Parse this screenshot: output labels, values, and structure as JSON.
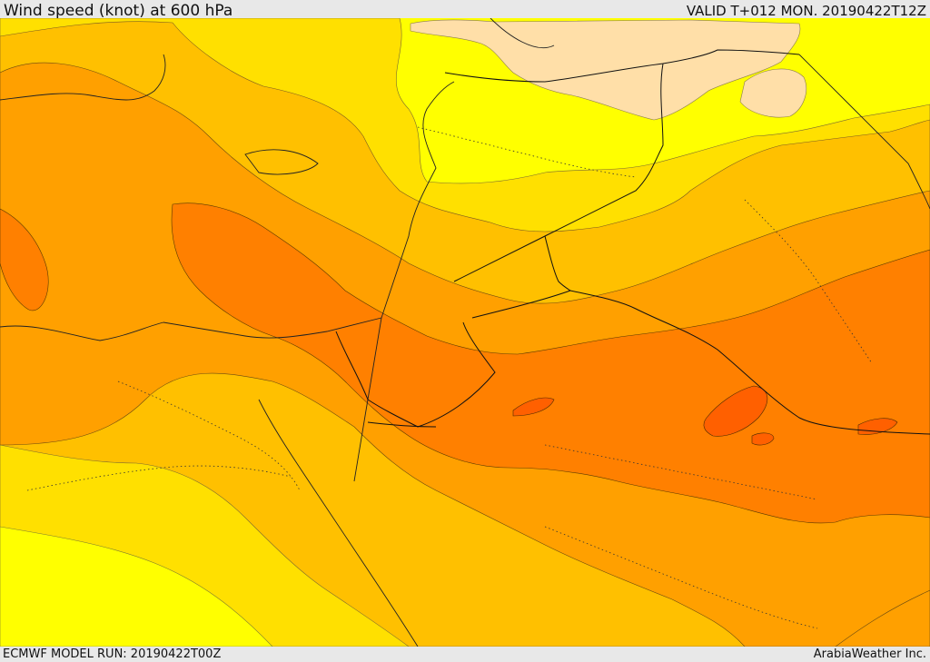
{
  "header": {
    "title": "Wind speed (knot) at 600 hPa",
    "valid_time": "VALID T+012 MON. 20190422T12Z"
  },
  "footer": {
    "model_run": "ECMWF MODEL RUN: 20190422T00Z",
    "credit": "ArabiaWeather Inc."
  },
  "map": {
    "shading_colors": [
      "#ffdfa8",
      "#ffff00",
      "#ffe000",
      "#ffc000",
      "#ffa000",
      "#ff8000",
      "#ff6000"
    ]
  }
}
